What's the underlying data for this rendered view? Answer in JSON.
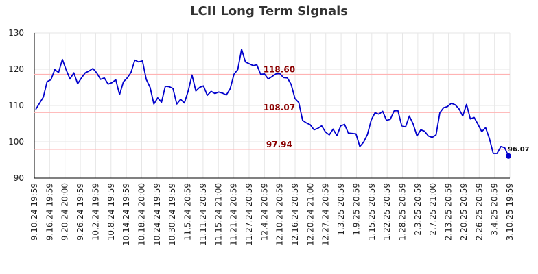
{
  "chart_data": {
    "type": "line",
    "title": "LCII Long Term Signals",
    "xlabel": "",
    "ylabel": "",
    "ylim": [
      90,
      130
    ],
    "yticks": [
      90,
      100,
      110,
      120,
      130
    ],
    "grid": true,
    "line_color": "#0000cc",
    "ref_line_color": "#ffb3b3",
    "ref_label_color": "#8b0000",
    "x_tick_labels": [
      "9.10.24 19:59",
      "9.16.24 19:59",
      "9.20.24 20:00",
      "9.26.24 19:59",
      "10.2.24 19:59",
      "10.8.24 19:59",
      "10.14.24 19:59",
      "10.18.24 20:00",
      "10.24.24 19:59",
      "10.30.24 19:59",
      "11.5.24 20:59",
      "11.11.24 20:59",
      "11.15.24 21:00",
      "11.21.24 20:59",
      "11.27.24 20:59",
      "12.4.24 20:59",
      "12.10.24 20:59",
      "12.16.24 20:59",
      "12.20.24 21:00",
      "12.27.24 20:59",
      "1.3.25 20:59",
      "1.9.25 20:59",
      "1.15.25 20:59",
      "1.22.25 20:59",
      "1.28.25 20:59",
      "2.3.25 20:59",
      "2.7.25 21:00",
      "2.13.25 20:59",
      "2.20.25 20:59",
      "2.26.25 20:59",
      "3.4.25 20:59",
      "3.10.25 19:59"
    ],
    "reference_lines": [
      {
        "value": 118.6,
        "label": "118.60"
      },
      {
        "value": 108.07,
        "label": "108.07"
      },
      {
        "value": 97.94,
        "label": "97.94"
      }
    ],
    "last_point_label": "96.07",
    "series": [
      {
        "values": [
          108.9,
          110.6,
          112.3,
          116.6,
          117.1,
          119.9,
          119.1,
          122.7,
          119.8,
          117.3,
          119.0,
          116.0,
          117.6,
          119.0,
          119.5,
          120.2,
          119.0,
          117.2,
          117.6,
          115.9,
          116.3,
          117.1,
          113.0,
          116.5,
          117.6,
          119.1,
          122.5,
          122.0,
          122.3,
          117.2,
          115.0,
          110.4,
          112.1,
          110.9,
          115.3,
          115.2,
          114.7,
          110.4,
          111.7,
          110.7,
          114.0,
          118.4,
          114.0,
          115.0,
          115.4,
          112.8,
          113.9,
          113.3,
          113.7,
          113.4,
          112.9,
          114.6,
          118.6,
          119.9,
          125.5,
          122.0,
          121.5,
          121.0,
          121.2,
          118.6,
          118.7,
          117.3,
          118.0,
          118.7,
          118.8,
          117.7,
          117.6,
          115.8,
          111.9,
          110.8,
          105.9,
          105.2,
          104.7,
          103.3,
          103.7,
          104.4,
          102.7,
          101.9,
          103.5,
          101.7,
          104.4,
          104.8,
          102.4,
          102.3,
          102.2,
          98.7,
          99.9,
          102.0,
          106.0,
          108.0,
          107.6,
          108.4,
          105.9,
          106.2,
          108.5,
          108.6,
          104.4,
          104.1,
          107.1,
          104.9,
          101.6,
          103.3,
          102.9,
          101.6,
          101.2,
          101.9,
          108.0,
          109.4,
          109.7,
          110.6,
          110.2,
          109.1,
          107.1,
          110.3,
          106.3,
          106.7,
          104.8,
          102.8,
          103.9,
          100.9,
          96.8,
          96.8,
          98.7,
          98.4,
          96.07
        ]
      }
    ]
  }
}
